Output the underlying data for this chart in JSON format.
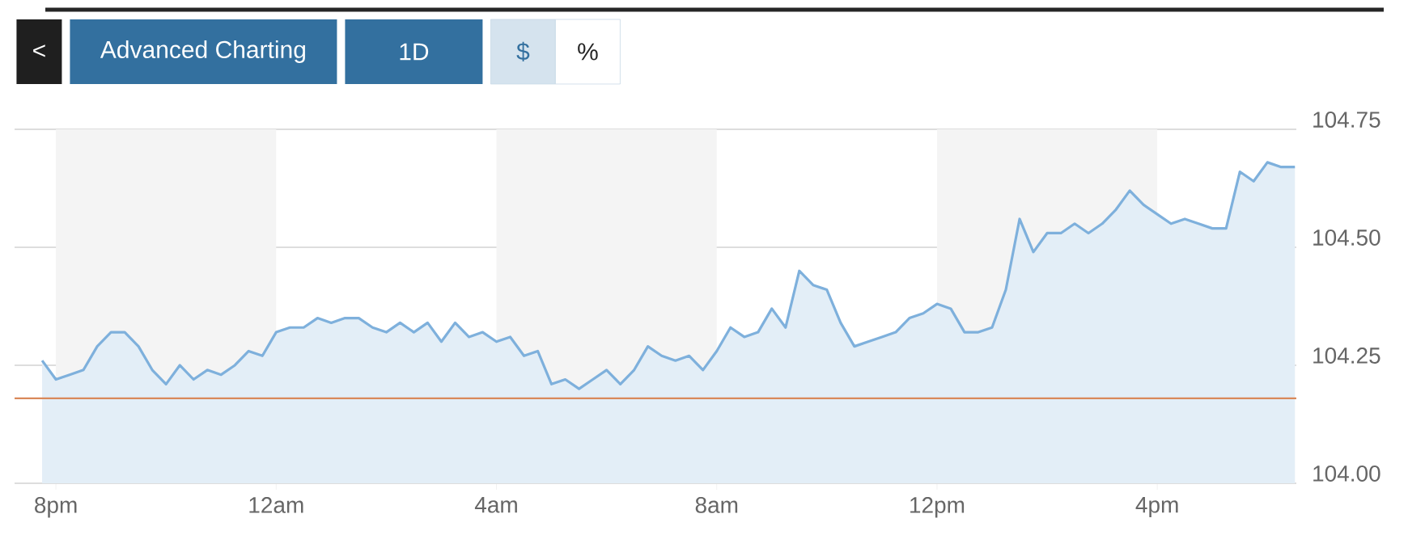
{
  "chart_data": {
    "type": "area",
    "annotations": [
      "<",
      "Advanced Charting",
      "1D",
      "$",
      "%"
    ],
    "categories": [
      null,
      "8pm",
      null,
      null,
      null,
      null,
      null,
      null,
      null,
      null,
      null,
      null,
      null,
      null,
      null,
      null,
      null,
      "12am",
      null,
      null,
      null,
      null,
      null,
      null,
      null,
      null,
      null,
      null,
      null,
      null,
      null,
      null,
      null,
      "4am",
      null,
      null,
      null,
      null,
      null,
      null,
      null,
      null,
      null,
      null,
      null,
      null,
      null,
      null,
      null,
      "8am",
      null,
      null,
      null,
      null,
      null,
      null,
      null,
      null,
      null,
      null,
      null,
      null,
      null,
      null,
      null,
      "12pm",
      null,
      null,
      null,
      null,
      null,
      null,
      null,
      null,
      null,
      null,
      null,
      null,
      null,
      null,
      null,
      "4pm",
      null,
      null,
      null,
      null,
      null,
      null,
      null,
      null,
      null,
      null
    ],
    "ylim": [
      104.0,
      104.75
    ],
    "yticks": [
      {
        "value": 104.0,
        "label": "104.00"
      },
      104.25,
      {
        "value": 104.5,
        "label": "104.50"
      },
      104.75
    ],
    "grid": "y",
    "marker": "none",
    "bands": [
      {
        "axis": "x",
        "from": "8pm",
        "to": "12am",
        "color": "#f4f4f4"
      },
      {
        "axis": "x",
        "from": "4am",
        "to": "8am",
        "color": "#f4f4f4"
      },
      {
        "axis": "x",
        "from": "12pm",
        "to": "4pm",
        "color": "#f4f4f4"
      }
    ],
    "ref_lines": [
      {
        "axis": "y",
        "value": 104.18,
        "color": "#d9895a"
      }
    ],
    "series": [
      {
        "color": "#7eb0dc",
        "values": [
          104.26,
          104.22,
          104.23,
          104.24,
          104.29,
          104.32,
          104.32,
          104.29,
          104.24,
          104.21,
          104.25,
          104.22,
          104.24,
          104.23,
          104.25,
          104.28,
          104.27,
          104.32,
          104.33,
          104.33,
          104.35,
          104.34,
          104.35,
          104.35,
          104.33,
          104.32,
          104.34,
          104.32,
          104.34,
          104.3,
          104.34,
          104.31,
          104.32,
          104.3,
          104.31,
          104.27,
          104.28,
          104.21,
          104.22,
          104.2,
          104.22,
          104.24,
          104.21,
          104.24,
          104.29,
          104.27,
          104.26,
          104.27,
          104.24,
          104.28,
          104.33,
          104.31,
          104.32,
          104.37,
          104.33,
          104.45,
          104.42,
          104.41,
          104.34,
          104.29,
          104.3,
          104.31,
          104.32,
          104.35,
          104.36,
          104.38,
          104.37,
          104.32,
          104.32,
          104.33,
          104.41,
          104.56,
          104.49,
          104.53,
          104.53,
          104.55,
          104.53,
          104.55,
          104.58,
          104.62,
          104.59,
          104.57,
          104.55,
          104.56,
          104.55,
          104.54,
          104.54,
          104.66,
          104.64,
          104.68,
          104.67,
          104.67
        ]
      }
    ]
  }
}
